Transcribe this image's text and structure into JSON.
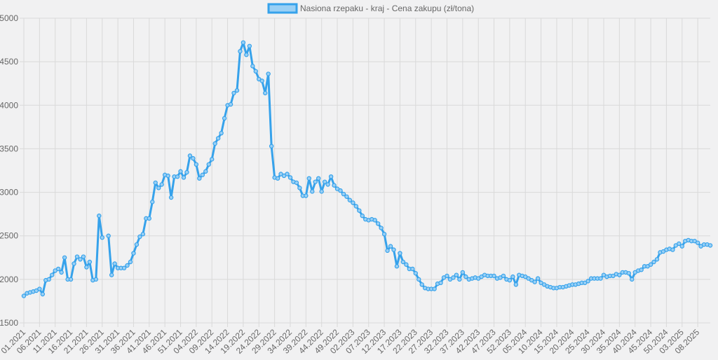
{
  "chart_data": {
    "type": "line",
    "legend": {
      "position": "top"
    },
    "colors": {
      "line": "#36a2eb",
      "fill": "#9ad0f5",
      "grid": "#d9d9d9",
      "background": "#f1f1f2",
      "text": "#666666"
    },
    "grid": true,
    "ylim": [
      1500,
      5000
    ],
    "yticks": [
      1500,
      2000,
      2500,
      3000,
      3500,
      4000,
      4500,
      5000
    ],
    "xtick_labels": [
      "01.2021",
      "06.2021",
      "11.2021",
      "16.2021",
      "21.2021",
      "26.2021",
      "31.2021",
      "36.2021",
      "41.2021",
      "46.2021",
      "51.2021",
      "04.2022",
      "09.2022",
      "14.2022",
      "19.2022",
      "24.2022",
      "29.2022",
      "34.2022",
      "39.2022",
      "44.2022",
      "49.2022",
      "02.2023",
      "07.2023",
      "12.2023",
      "17.2023",
      "22.2023",
      "27.2023",
      "32.2023",
      "37.2023",
      "42.2023",
      "47.2023",
      "52.2023",
      "05.2024",
      "10.2024",
      "15.2024",
      "20.2024",
      "25.2024",
      "30.2024",
      "35.2024",
      "40.2024",
      "45.2024",
      "50.2024",
      "03.2025",
      "08.2025"
    ],
    "series": [
      {
        "name": "Nasiona rzepaku - kraj - Cena zakupu (zł/tona)",
        "values": [
          1810,
          1840,
          1850,
          1860,
          1870,
          1890,
          1830,
          1990,
          2000,
          2050,
          2100,
          2120,
          2080,
          2250,
          2000,
          2000,
          2180,
          2260,
          2230,
          2260,
          2140,
          2200,
          1990,
          2000,
          2730,
          2480,
          null,
          2500,
          2050,
          2180,
          2130,
          2130,
          2130,
          2160,
          2200,
          2300,
          2400,
          2490,
          2520,
          2700,
          2700,
          2890,
          3110,
          3050,
          3090,
          3200,
          3190,
          2940,
          3180,
          3180,
          3240,
          3170,
          3230,
          3420,
          3390,
          3320,
          3160,
          3200,
          3240,
          3320,
          3380,
          3560,
          3620,
          3680,
          3850,
          4000,
          4010,
          4140,
          4170,
          4620,
          4720,
          4580,
          4680,
          4450,
          4390,
          4300,
          4280,
          4140,
          4360,
          3530,
          3170,
          3160,
          3210,
          3190,
          3210,
          3170,
          3120,
          3110,
          3050,
          2960,
          2960,
          3160,
          3010,
          3120,
          3160,
          3010,
          3120,
          3090,
          3180,
          3080,
          3040,
          3020,
          2980,
          2950,
          2910,
          2880,
          2840,
          2790,
          2730,
          2690,
          2680,
          2690,
          2680,
          2640,
          2590,
          2520,
          2330,
          2380,
          2340,
          2150,
          2300,
          2200,
          2170,
          2120,
          2120,
          2070,
          2000,
          1940,
          1900,
          1890,
          1890,
          1890,
          1950,
          1960,
          2020,
          2040,
          2000,
          2020,
          2050,
          2000,
          2080,
          2030,
          2000,
          2010,
          2020,
          2010,
          2030,
          2050,
          2040,
          2040,
          2040,
          2010,
          2020,
          2040,
          2000,
          1990,
          2030,
          1940,
          2050,
          2040,
          2030,
          2010,
          1990,
          1970,
          2010,
          1960,
          1940,
          1920,
          1910,
          1900,
          1900,
          1910,
          1910,
          1920,
          1930,
          1940,
          1940,
          1950,
          1960,
          1960,
          1980,
          2010,
          2010,
          2010,
          2010,
          2050,
          2030,
          2040,
          2040,
          2060,
          2050,
          2080,
          2080,
          2070,
          2000,
          2080,
          2100,
          2110,
          2150,
          2150,
          2170,
          2200,
          2230,
          2310,
          2320,
          2340,
          2350,
          2340,
          2390,
          2410,
          2380,
          2440,
          2450,
          2440,
          2440,
          2420,
          2380,
          2400,
          2400,
          2390
        ]
      }
    ]
  }
}
